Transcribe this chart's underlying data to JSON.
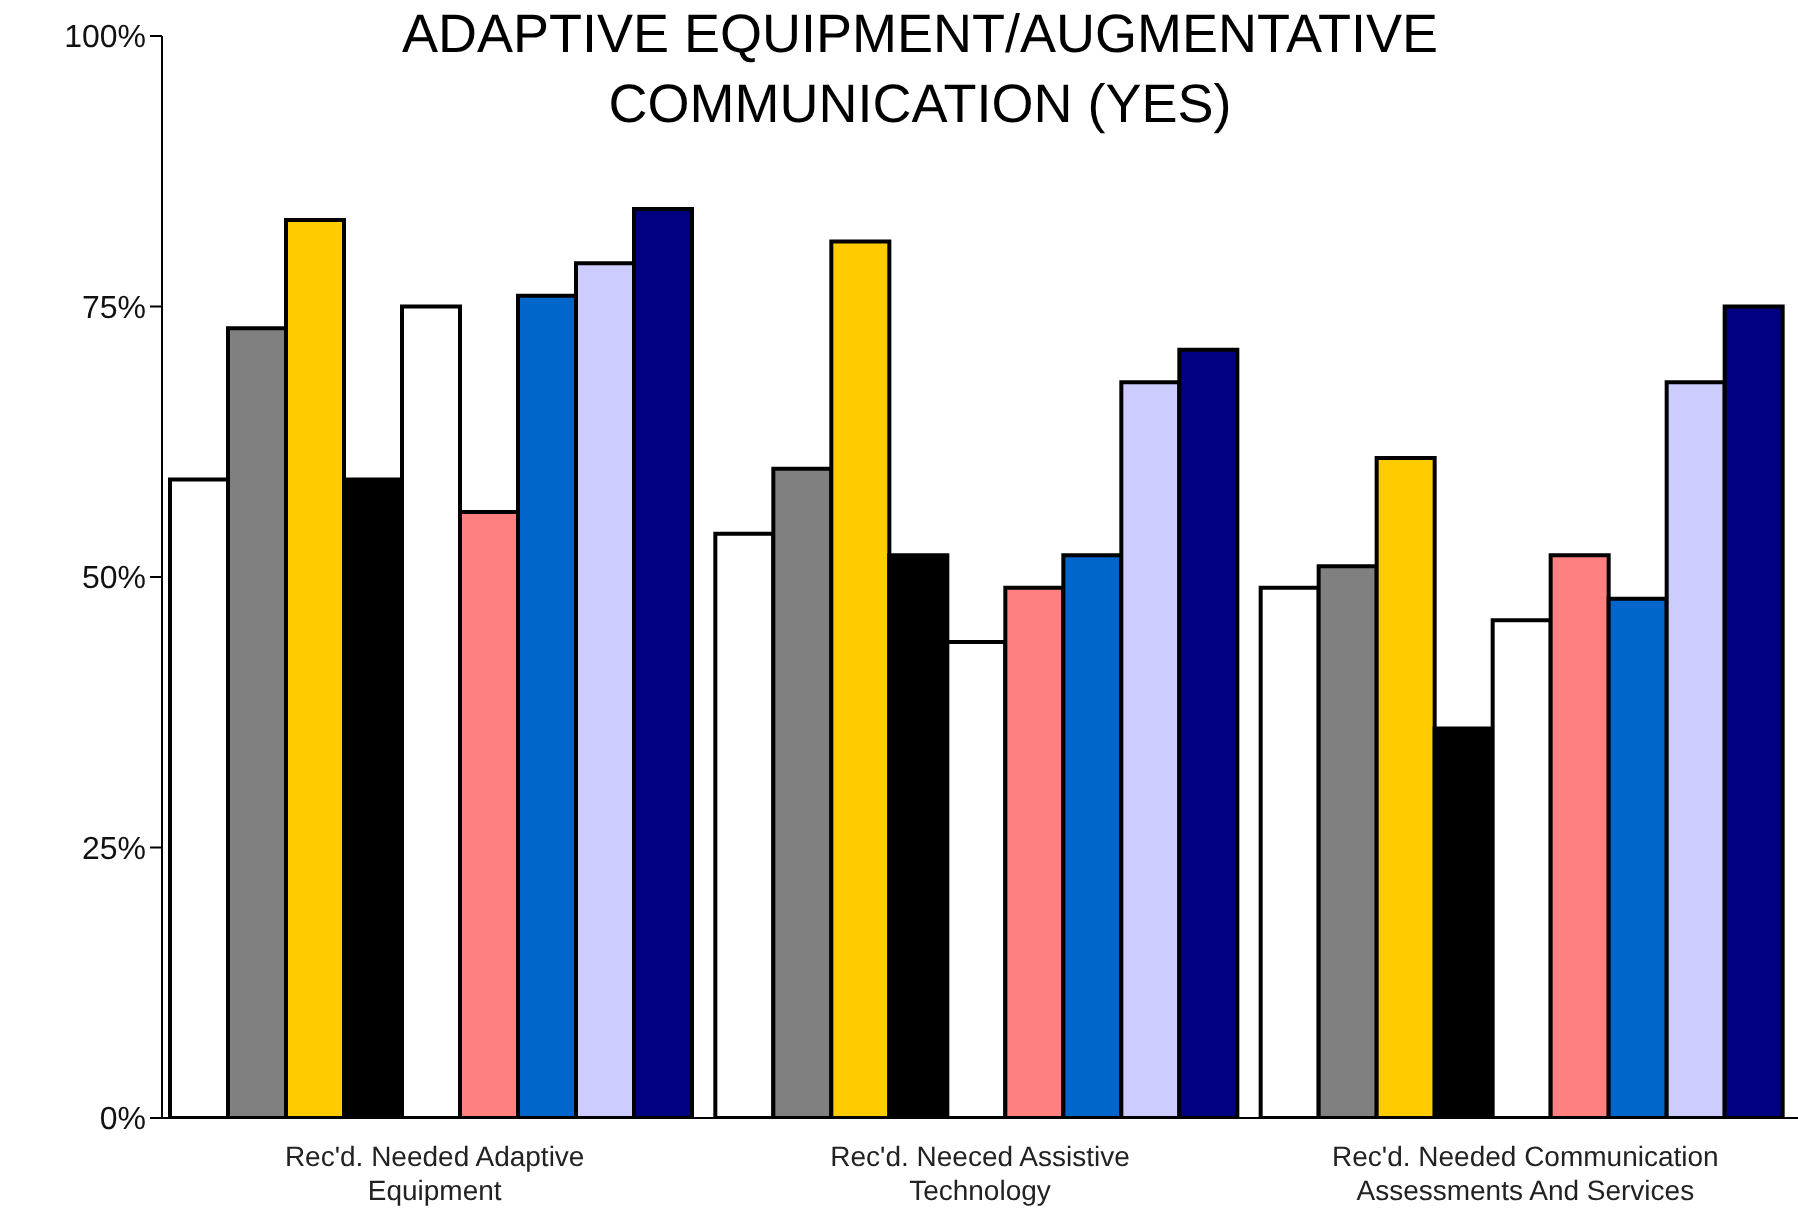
{
  "chart_data": {
    "type": "bar",
    "title": "ADAPTIVE EQUIPMENT/AUGMENTATIVE COMMUNICATION (YES)",
    "categories": [
      "Rec'd. Needed Adaptive Equipment",
      "Rec'd. Neeced Assistive Technology",
      "Rec'd. Needed Communication Assessments And Services"
    ],
    "series": [
      {
        "color": "#ffffff",
        "values": [
          59,
          54,
          49
        ]
      },
      {
        "color": "#808080",
        "values": [
          73,
          60,
          51
        ]
      },
      {
        "color": "#ffcc00",
        "values": [
          83,
          81,
          61
        ]
      },
      {
        "color": "#000000",
        "values": [
          59,
          52,
          36
        ]
      },
      {
        "color": "#ffffff",
        "values": [
          75,
          44,
          46
        ]
      },
      {
        "color": "#ff8080",
        "values": [
          56,
          49,
          52
        ]
      },
      {
        "color": "#0066cc",
        "values": [
          76,
          52,
          48
        ]
      },
      {
        "color": "#ccccff",
        "values": [
          79,
          68,
          68
        ]
      },
      {
        "color": "#000080",
        "values": [
          84,
          71,
          75
        ]
      }
    ],
    "ylim": [
      0,
      100
    ],
    "yticks": [
      {
        "value": 0,
        "label": "0%"
      },
      {
        "value": 25,
        "label": "25%"
      },
      {
        "value": 50,
        "label": "50%"
      },
      {
        "value": 75,
        "label": "75%"
      },
      {
        "value": 100,
        "label": "100%"
      }
    ],
    "grid": false,
    "legend": false
  }
}
